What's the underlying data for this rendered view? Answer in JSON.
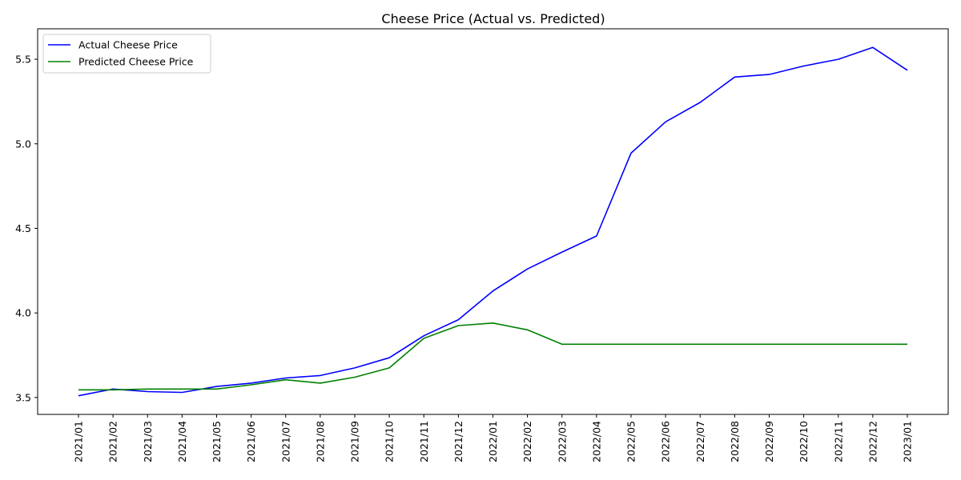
{
  "chart_data": {
    "type": "line",
    "title": "Cheese Price (Actual vs. Predicted)",
    "xlabel": "",
    "ylabel": "",
    "x": [
      "2021/01",
      "2021/02",
      "2021/03",
      "2021/04",
      "2021/05",
      "2021/06",
      "2021/07",
      "2021/08",
      "2021/09",
      "2021/10",
      "2021/11",
      "2021/12",
      "2022/01",
      "2022/02",
      "2022/03",
      "2022/04",
      "2022/05",
      "2022/06",
      "2022/07",
      "2022/08",
      "2022/09",
      "2022/10",
      "2022/11",
      "2022/12",
      "2023/01"
    ],
    "yticks": [
      3.5,
      4.0,
      4.5,
      5.0,
      5.5
    ],
    "ytick_labels": [
      "3.5",
      "4.0",
      "4.5",
      "5.0",
      "5.5"
    ],
    "ylim": [
      3.4,
      5.68
    ],
    "grid": false,
    "legend_position": "top-left",
    "series": [
      {
        "name": "Actual Cheese Price",
        "color": "#0000ff",
        "values": [
          3.51,
          3.55,
          3.535,
          3.53,
          3.565,
          3.585,
          3.615,
          3.63,
          3.675,
          3.735,
          3.865,
          3.96,
          4.13,
          4.26,
          4.36,
          4.455,
          4.945,
          5.13,
          5.245,
          5.395,
          5.41,
          5.46,
          5.5,
          5.57,
          5.435
        ]
      },
      {
        "name": "Predicted Cheese Price",
        "color": "#008000",
        "values": [
          3.545,
          3.545,
          3.55,
          3.55,
          3.55,
          3.575,
          3.605,
          3.585,
          3.62,
          3.675,
          3.85,
          3.925,
          3.94,
          3.9,
          3.815,
          3.815,
          3.815,
          3.815,
          3.815,
          3.815,
          3.815,
          3.815,
          3.815,
          3.815,
          3.815
        ]
      }
    ]
  }
}
